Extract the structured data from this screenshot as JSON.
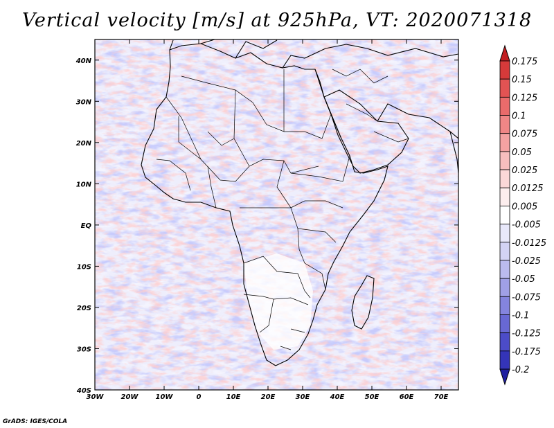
{
  "title": "Vertical velocity [m/s] at 925hPa, VT: 2020071318",
  "credit": "GrADS: IGES/COLA",
  "map": {
    "lon_range": [
      -30,
      75
    ],
    "lat_range": [
      -40,
      45
    ],
    "x_ticks": [
      "30W",
      "20W",
      "10W",
      "0",
      "10E",
      "20E",
      "30E",
      "40E",
      "50E",
      "60E",
      "70E"
    ],
    "y_ticks": [
      "40N",
      "30N",
      "20N",
      "10N",
      "EQ",
      "10S",
      "20S",
      "30S",
      "40S"
    ]
  },
  "colorbar": {
    "labels": [
      "0.175",
      "0.15",
      "0.125",
      "0.1",
      "0.075",
      "0.05",
      "0.025",
      "0.0125",
      "0.005",
      "-0.005",
      "-0.0125",
      "-0.025",
      "-0.05",
      "-0.075",
      "-0.1",
      "-0.125",
      "-0.175",
      "-0.2"
    ],
    "colors": [
      "#c21e22",
      "#d63a3a",
      "#e25353",
      "#ea6b6b",
      "#f08686",
      "#f4a2a2",
      "#f8bebe",
      "#fbd8d8",
      "#fdeeee",
      "#ffffff",
      "#e8e8fa",
      "#d3d3f4",
      "#bbbbee",
      "#a0a0e6",
      "#8484de",
      "#6868d4",
      "#4c4cc8",
      "#3434b8",
      "#2020a0"
    ]
  }
}
